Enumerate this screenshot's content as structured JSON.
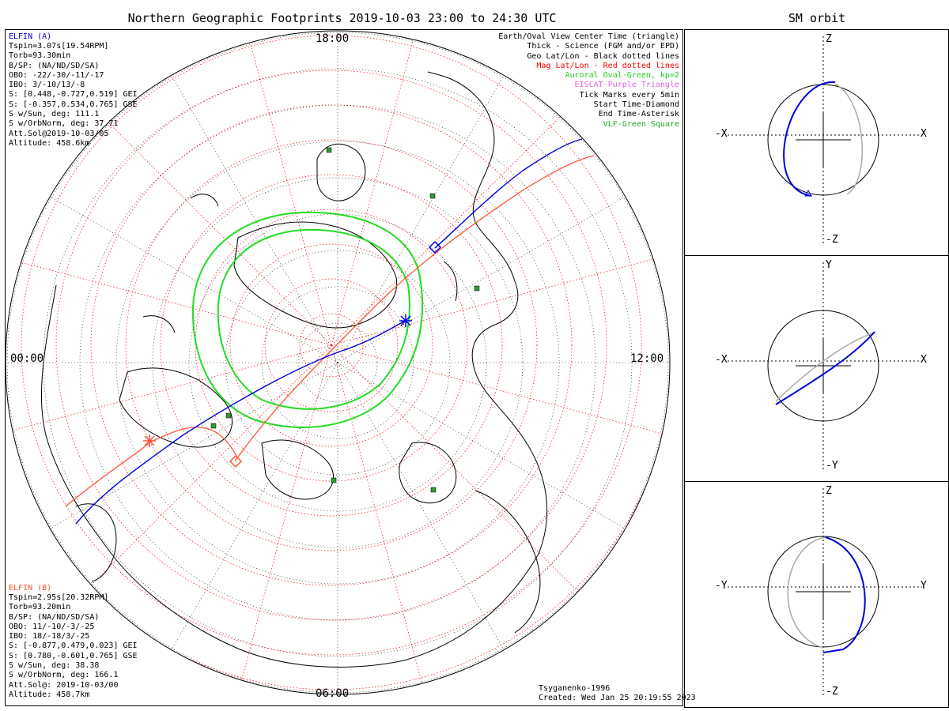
{
  "title": "Northern Geographic Footprints 2019-10-03 23:00 to 24:30 UTC",
  "sm_title": "SM orbit",
  "hour_labels": {
    "top": "18:00",
    "left": "00:00",
    "right": "12:00",
    "bottom": "06:00"
  },
  "elfin_a": {
    "name": "ELFIN (A)",
    "lines": [
      "Tspin=3.07s[19.54RPM]",
      "Torb=93.30min",
      "B/SP: (NA/ND/SD/SA)",
      "OBO: -22/-30/-11/-17",
      "IBO: 3/-10/13/-8",
      "S: [0.448,-0.727,0.519] GEI",
      "S: [-0.357,0.534,0.765] GSE",
      "S w/Sun, deg: 111.1",
      "S w/OrbNorm, deg: 37.71",
      "Att.Sol@2019-10-03/05",
      "Altitude: 458.6km"
    ]
  },
  "elfin_b": {
    "name": "ELFIN (B)",
    "lines": [
      "Tspin=2.95s[20.32RPM]",
      "Torb=93.20min",
      "B/SP: (NA/ND/SD/SA)",
      "OBO: 11/-10/-3/-25",
      "IBO: 18/-18/3/-25",
      "S: [-0.877,0.479,0.023] GEI",
      "S: [0.780,-0.601,0.765] GSE",
      "S w/Sun, deg: 38.38",
      "S w/OrbNorm, deg: 166.1",
      "Att.Sol@: 2019-10-03/00",
      "Altitude: 458.7km"
    ]
  },
  "legend": [
    {
      "text": "Earth/Oval View Center Time (triangle)",
      "color": "#000000"
    },
    {
      "text": "Thick - Science (FGM and/or EPD)",
      "color": "#000000"
    },
    {
      "text": "Geo Lat/Lon - Black dotted lines",
      "color": "#000000"
    },
    {
      "text": "Mag Lat/Lon - Red dotted lines",
      "color": "#ff0000"
    },
    {
      "text": "Auroral Oval-Green, kp=2",
      "color": "#22cc22"
    },
    {
      "text": "EISCAT-Purple Triangle",
      "color": "#dd66dd"
    },
    {
      "text": "Tick Marks every 5min",
      "color": "#000000"
    },
    {
      "text": "Start Time-Diamond",
      "color": "#000000"
    },
    {
      "text": "End Time-Asterisk",
      "color": "#000000"
    },
    {
      "text": "VLF-Green Square",
      "color": "#22aa22"
    }
  ],
  "model": "Tsyganenko-1996",
  "created": "Created: Wed Jan 25 20:19:55 2023",
  "colors": {
    "elfin_a": "#0000dd",
    "elfin_b": "#ff5533",
    "oval": "#22dd22",
    "geo_grid": "#000000",
    "mag_grid": "#ff0000",
    "vlf": "#339933",
    "model_orbit": "#aaaaaa"
  },
  "sm_panels": [
    {
      "top": "Z",
      "bottom": "-Z",
      "left": "-X",
      "right": "X"
    },
    {
      "top": "Y",
      "bottom": "-Y",
      "left": "-X",
      "right": "X"
    },
    {
      "top": "Z",
      "bottom": "-Z",
      "left": "-Y",
      "right": "Y"
    }
  ]
}
